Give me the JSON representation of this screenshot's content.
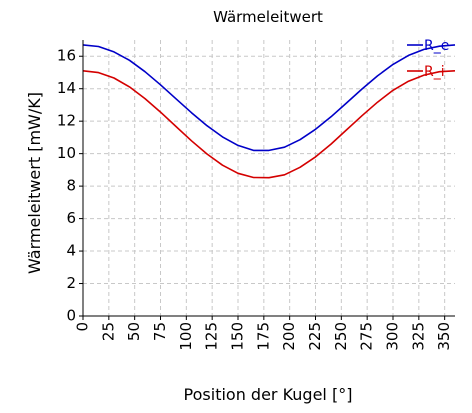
{
  "chart_data": {
    "type": "line",
    "title": "Wärmeleitwert",
    "xlabel": "Position der Kugel [°]",
    "ylabel": "Wärmeleitwert [mW/K]",
    "xlim": [
      0,
      360
    ],
    "ylim": [
      0,
      17
    ],
    "xticks": [
      0,
      25,
      50,
      75,
      100,
      125,
      150,
      175,
      200,
      225,
      250,
      275,
      300,
      325,
      350
    ],
    "yticks": [
      0,
      2,
      4,
      6,
      8,
      10,
      12,
      14,
      16
    ],
    "grid": true,
    "legend_position": "top-right",
    "series": [
      {
        "name": "R_e",
        "color": "#0000c8",
        "x": [
          0,
          15,
          30,
          45,
          60,
          75,
          90,
          105,
          120,
          135,
          150,
          165,
          180,
          195,
          210,
          225,
          240,
          255,
          270,
          285,
          300,
          315,
          330,
          345,
          360
        ],
        "y": [
          16.7,
          16.6,
          16.27,
          15.75,
          15.05,
          14.24,
          13.38,
          12.52,
          11.72,
          11.03,
          10.51,
          10.2,
          10.2,
          10.4,
          10.86,
          11.5,
          12.27,
          13.12,
          13.98,
          14.79,
          15.5,
          16.05,
          16.42,
          16.62,
          16.7
        ]
      },
      {
        "name": "R_i",
        "color": "#d40000",
        "x": [
          0,
          15,
          30,
          45,
          60,
          75,
          90,
          105,
          120,
          135,
          150,
          165,
          180,
          195,
          210,
          225,
          240,
          255,
          270,
          285,
          300,
          315,
          330,
          345,
          360
        ],
        "y": [
          15.1,
          14.99,
          14.66,
          14.11,
          13.39,
          12.56,
          11.67,
          10.79,
          9.98,
          9.29,
          8.79,
          8.53,
          8.52,
          8.7,
          9.16,
          9.8,
          10.59,
          11.46,
          12.34,
          13.17,
          13.9,
          14.46,
          14.84,
          15.05,
          15.1
        ]
      }
    ]
  }
}
